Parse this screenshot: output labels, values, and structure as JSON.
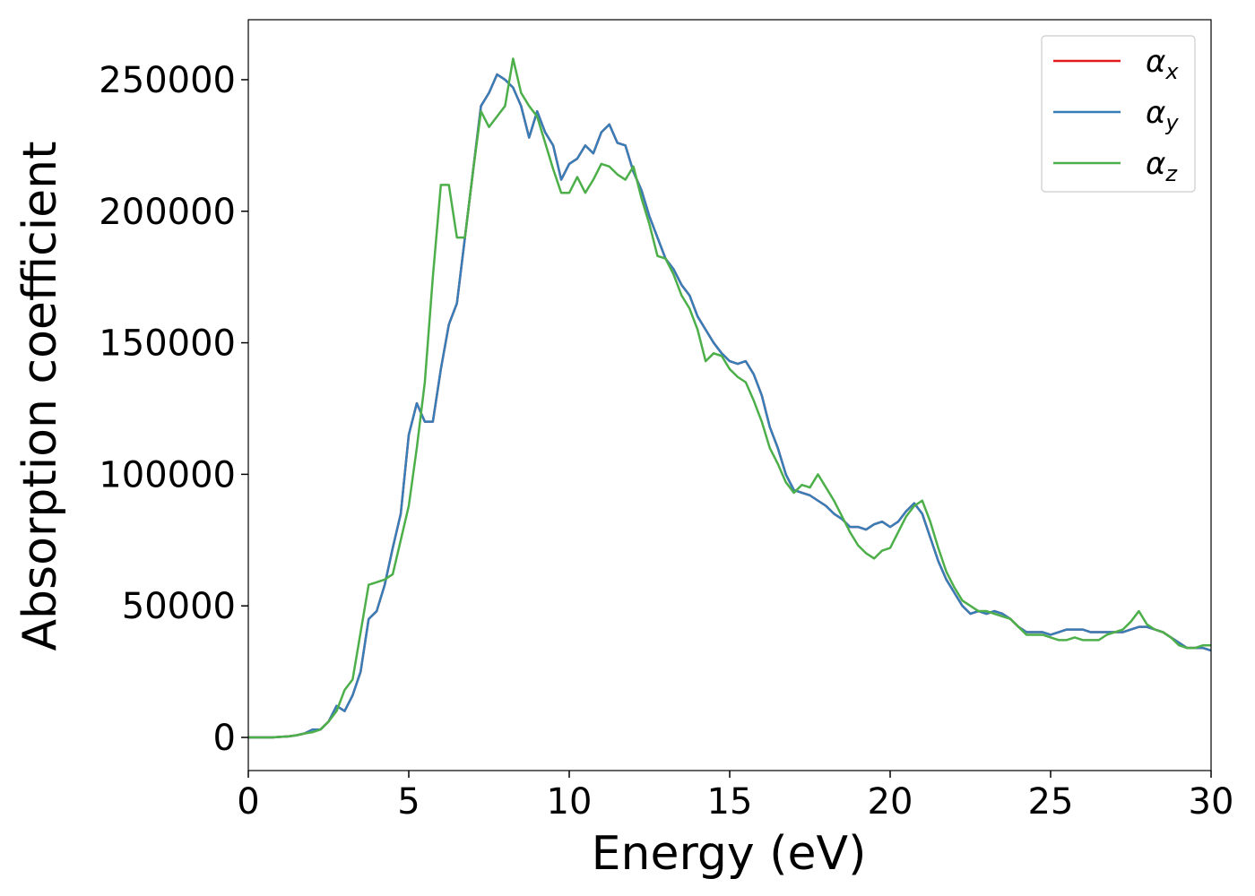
{
  "chart_data": {
    "type": "line",
    "x_label": "Energy (eV)",
    "y_label": "Absorption coefficient",
    "xlim": [
      0,
      30
    ],
    "ylim": [
      -12600,
      272800
    ],
    "xticks": [
      0,
      5,
      10,
      15,
      20,
      25,
      30
    ],
    "yticks": [
      0,
      50000,
      100000,
      150000,
      200000,
      250000
    ],
    "legend": "upper right",
    "x": [
      0,
      0.25,
      0.5,
      0.75,
      1,
      1.25,
      1.5,
      1.75,
      2,
      2.25,
      2.5,
      2.75,
      3,
      3.25,
      3.5,
      3.75,
      4,
      4.25,
      4.5,
      4.75,
      5,
      5.25,
      5.5,
      5.75,
      6,
      6.25,
      6.5,
      6.75,
      7,
      7.25,
      7.5,
      7.75,
      8,
      8.25,
      8.5,
      8.75,
      9,
      9.25,
      9.5,
      9.75,
      10,
      10.25,
      10.5,
      10.75,
      11,
      11.25,
      11.5,
      11.75,
      12,
      12.25,
      12.5,
      12.75,
      13,
      13.25,
      13.5,
      13.75,
      14,
      14.25,
      14.5,
      14.75,
      15,
      15.25,
      15.5,
      15.75,
      16,
      16.25,
      16.5,
      16.75,
      17,
      17.25,
      17.5,
      17.75,
      18,
      18.25,
      18.5,
      18.75,
      19,
      19.25,
      19.5,
      19.75,
      20,
      20.25,
      20.5,
      20.75,
      21,
      21.25,
      21.5,
      21.75,
      22,
      22.25,
      22.5,
      22.75,
      23,
      23.25,
      23.5,
      23.75,
      24,
      24.25,
      24.5,
      24.75,
      25,
      25.25,
      25.5,
      25.75,
      26,
      26.25,
      26.5,
      26.75,
      27,
      27.25,
      27.5,
      27.75,
      28,
      28.25,
      28.5,
      28.75,
      29,
      29.25,
      29.5,
      29.75,
      30
    ],
    "series": [
      {
        "name": "αx",
        "color": "#e41a1c",
        "values": [
          0,
          0,
          0,
          0,
          200,
          400,
          800,
          1500,
          3000,
          3000,
          6000,
          12000,
          10000,
          16000,
          25000,
          45000,
          48000,
          58000,
          72000,
          85000,
          115000,
          127000,
          120000,
          120000,
          140000,
          157000,
          165000,
          190000,
          215000,
          240000,
          245000,
          252000,
          250000,
          247000,
          240000,
          228000,
          238000,
          230000,
          225000,
          212000,
          218000,
          220000,
          225000,
          222000,
          230000,
          233000,
          226000,
          225000,
          215000,
          208000,
          198000,
          190000,
          182000,
          178000,
          172000,
          168000,
          160000,
          155000,
          150000,
          146000,
          143000,
          142000,
          143000,
          138000,
          130000,
          118000,
          110000,
          100000,
          94000,
          93000,
          92000,
          90000,
          88000,
          85000,
          83000,
          80000,
          80000,
          79000,
          81000,
          82000,
          80000,
          82000,
          86000,
          89000,
          85000,
          76000,
          67000,
          60000,
          55000,
          50000,
          47000,
          48000,
          47000,
          48000,
          47000,
          45000,
          42000,
          40000,
          40000,
          40000,
          39000,
          40000,
          41000,
          41000,
          41000,
          40000,
          40000,
          40000,
          40000,
          40000,
          41000,
          42000,
          42000,
          41000,
          40000,
          38000,
          36000,
          34000,
          34000,
          34000,
          33000
        ]
      },
      {
        "name": "αy",
        "color": "#377eb8",
        "values": [
          0,
          0,
          0,
          0,
          200,
          400,
          800,
          1500,
          3000,
          3000,
          6000,
          12000,
          10000,
          16000,
          25000,
          45000,
          48000,
          58000,
          72000,
          85000,
          115000,
          127000,
          120000,
          120000,
          140000,
          157000,
          165000,
          190000,
          215000,
          240000,
          245000,
          252000,
          250000,
          247000,
          240000,
          228000,
          238000,
          230000,
          225000,
          212000,
          218000,
          220000,
          225000,
          222000,
          230000,
          233000,
          226000,
          225000,
          215000,
          208000,
          198000,
          190000,
          182000,
          178000,
          172000,
          168000,
          160000,
          155000,
          150000,
          146000,
          143000,
          142000,
          143000,
          138000,
          130000,
          118000,
          110000,
          100000,
          94000,
          93000,
          92000,
          90000,
          88000,
          85000,
          83000,
          80000,
          80000,
          79000,
          81000,
          82000,
          80000,
          82000,
          86000,
          89000,
          85000,
          76000,
          67000,
          60000,
          55000,
          50000,
          47000,
          48000,
          47000,
          48000,
          47000,
          45000,
          42000,
          40000,
          40000,
          40000,
          39000,
          40000,
          41000,
          41000,
          41000,
          40000,
          40000,
          40000,
          40000,
          40000,
          41000,
          42000,
          42000,
          41000,
          40000,
          38000,
          36000,
          34000,
          34000,
          34000,
          33000
        ]
      },
      {
        "name": "αz",
        "color": "#4daf4a",
        "values": [
          0,
          0,
          0,
          0,
          200,
          400,
          800,
          1500,
          2000,
          3000,
          6000,
          10000,
          18000,
          22000,
          40000,
          58000,
          59000,
          60000,
          62000,
          75000,
          88000,
          110000,
          135000,
          175000,
          210000,
          210000,
          190000,
          190000,
          215000,
          238000,
          232000,
          236000,
          240000,
          258000,
          245000,
          240000,
          236000,
          226000,
          216000,
          207000,
          207000,
          213000,
          207000,
          212000,
          218000,
          217000,
          214000,
          212000,
          217000,
          205000,
          195000,
          183000,
          182000,
          176000,
          168000,
          163000,
          155000,
          143000,
          146000,
          145000,
          140000,
          137000,
          135000,
          128000,
          120000,
          110000,
          104000,
          97000,
          93000,
          96000,
          95000,
          100000,
          95000,
          90000,
          84000,
          78000,
          73000,
          70000,
          68000,
          71000,
          72000,
          78000,
          84000,
          88000,
          90000,
          82000,
          72000,
          63000,
          57000,
          52000,
          50000,
          48000,
          48000,
          47000,
          46000,
          45000,
          42000,
          39000,
          39000,
          39000,
          38000,
          37000,
          37000,
          38000,
          37000,
          37000,
          37000,
          39000,
          40000,
          41000,
          44000,
          48000,
          43000,
          41000,
          40000,
          38000,
          35000,
          34000,
          34000,
          35000,
          35000
        ]
      }
    ]
  }
}
